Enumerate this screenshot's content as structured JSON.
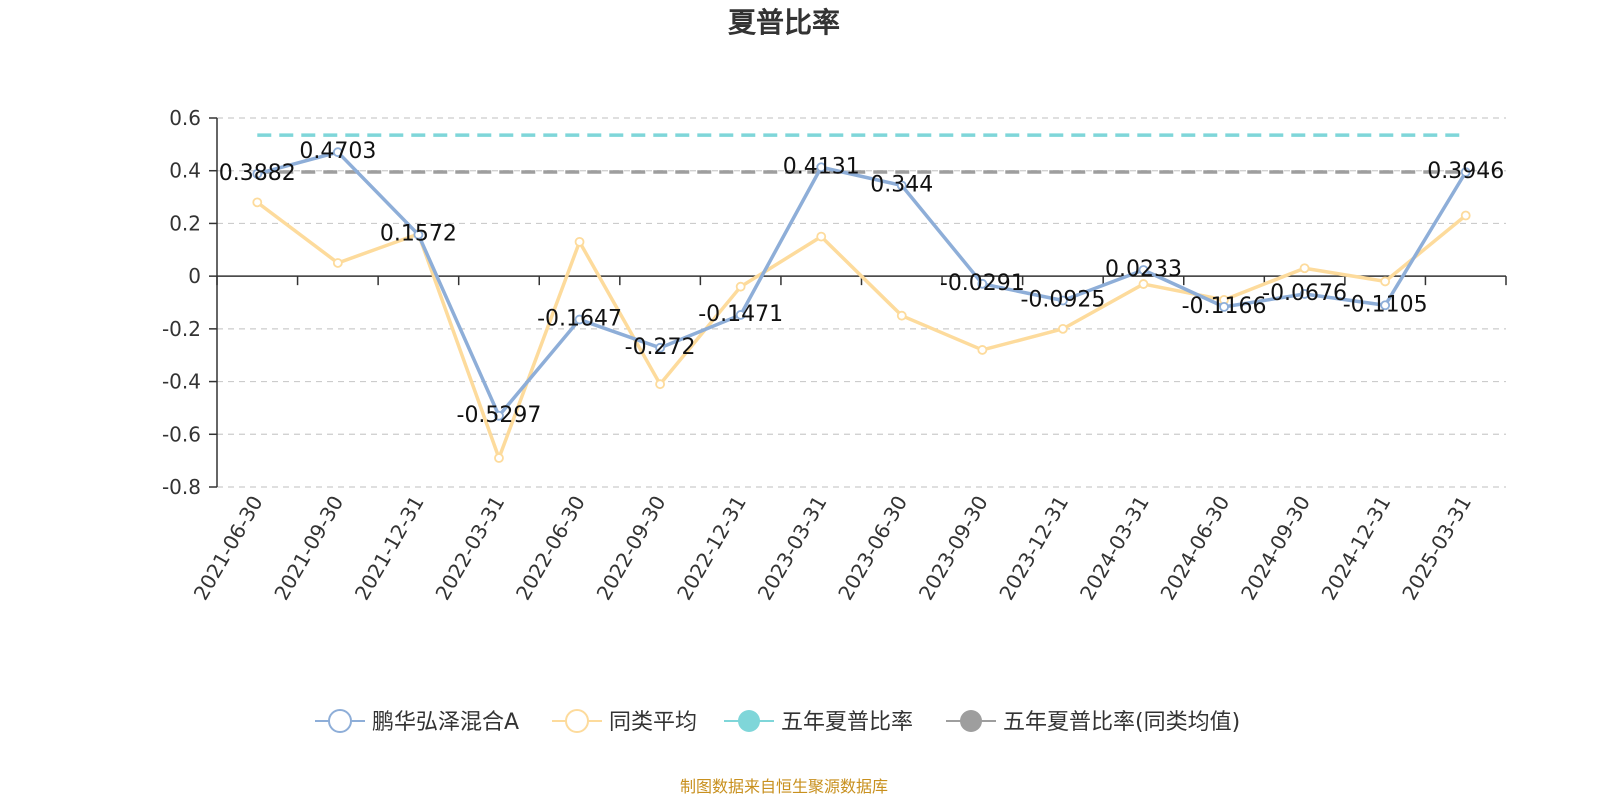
{
  "chart_data": {
    "type": "line",
    "title": "夏普比率",
    "categories": [
      "2021-06-30",
      "2021-09-30",
      "2021-12-31",
      "2022-03-31",
      "2022-06-30",
      "2022-09-30",
      "2022-12-31",
      "2023-03-31",
      "2023-06-30",
      "2023-09-30",
      "2023-12-31",
      "2024-03-31",
      "2024-06-30",
      "2024-09-30",
      "2024-12-31",
      "2025-03-31"
    ],
    "ylim": [
      -0.8,
      0.6
    ],
    "yticks": [
      0.6,
      0.4,
      0.2,
      0,
      -0.2,
      -0.4,
      -0.6,
      -0.8
    ],
    "ytick_labels": [
      "0.6",
      "0.4",
      "0.2",
      "0",
      "-0.2",
      "-0.4",
      "-0.6",
      "-0.8"
    ],
    "grid": true,
    "legend_position": "bottom",
    "series": [
      {
        "name": "鹏华弘泽混合A",
        "color": "#8eaed8",
        "values": [
          0.3882,
          0.4703,
          0.1572,
          -0.5297,
          -0.1647,
          -0.272,
          -0.1471,
          0.4131,
          0.344,
          -0.0291,
          -0.0925,
          0.0233,
          -0.1166,
          -0.0676,
          -0.1105,
          0.3946
        ],
        "labels": [
          "0.3882",
          "0.4703",
          "0.1572",
          "-0.5297",
          "-0.1647",
          "-0.272",
          "-0.1471",
          "0.4131",
          "0.344",
          "-0.0291",
          "-0.0925",
          "0.0233",
          "-0.1166",
          "-0.0676",
          "-0.1105",
          "0.3946"
        ]
      },
      {
        "name": "同类平均",
        "color": "#fddb9c",
        "values": [
          0.28,
          0.05,
          0.16,
          -0.69,
          0.13,
          -0.41,
          -0.04,
          0.15,
          -0.15,
          -0.28,
          -0.2,
          -0.03,
          -0.09,
          0.03,
          -0.02,
          0.23
        ]
      },
      {
        "name": "五年夏普比率",
        "color": "#7fd6d9",
        "value": 0.535
      },
      {
        "name": "五年夏普比率(同类均值)",
        "color": "#9e9e9e",
        "value": 0.395
      }
    ],
    "source": "制图数据来自恒生聚源数据库"
  }
}
